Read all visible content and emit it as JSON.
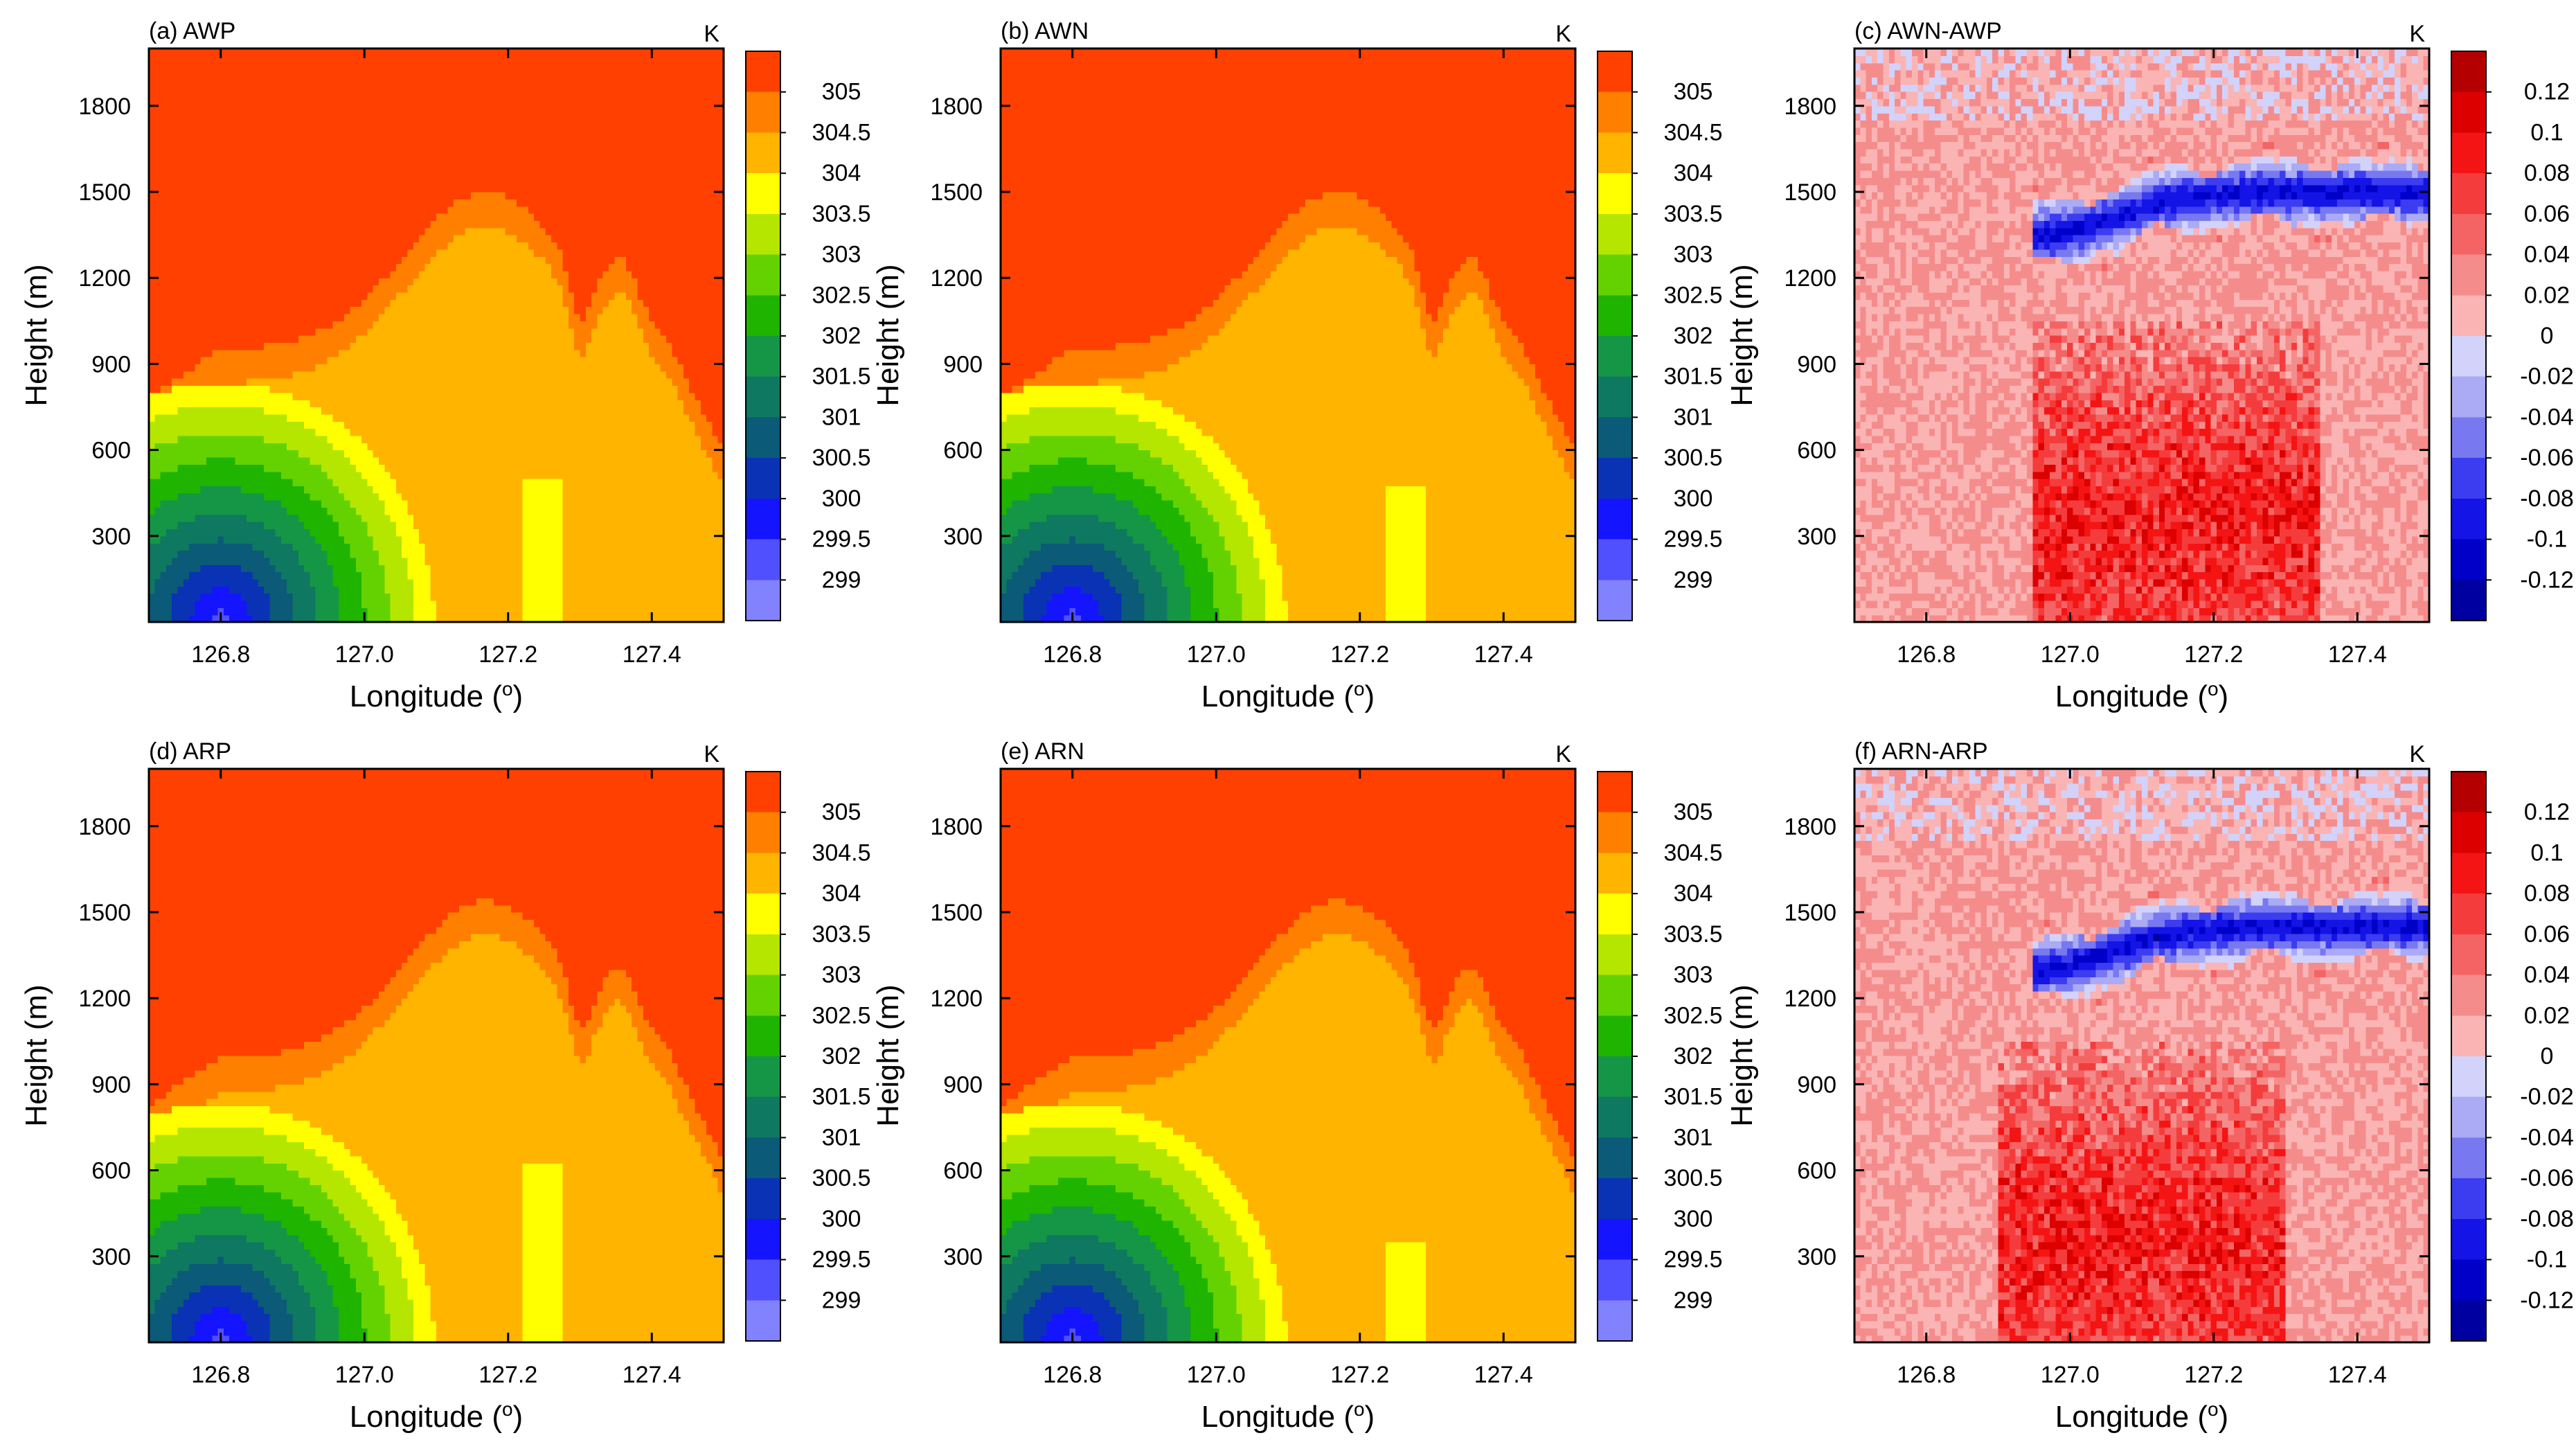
{
  "chart_data": [
    {
      "id": "a",
      "type": "heatmap",
      "title": "(a) AWP",
      "units": "K",
      "xlabel": "Longitude",
      "xlabel_unit": "o",
      "ylabel": "Height (m)",
      "xlim": [
        126.7,
        127.5
      ],
      "ylim": [
        0,
        2000
      ],
      "xticks": [
        "126.8",
        "127.0",
        "127.2",
        "127.4"
      ],
      "xtick_values": [
        126.8,
        127.0,
        127.2,
        127.4
      ],
      "yticks": [
        "300",
        "600",
        "900",
        "1200",
        "1500",
        "1800"
      ],
      "ytick_values": [
        300,
        600,
        900,
        1200,
        1500,
        1800
      ],
      "colorbar": "temp",
      "field": {
        "kind": "temperature",
        "variant": "W",
        "core_peak_km": 0.48,
        "plume": [
          127.25,
          0.5
        ]
      }
    },
    {
      "id": "b",
      "type": "heatmap",
      "title": "(b) AWN",
      "units": "K",
      "xlabel": "Longitude",
      "xlabel_unit": "o",
      "ylabel": "Height (m)",
      "xlim": [
        126.7,
        127.5
      ],
      "ylim": [
        0,
        2000
      ],
      "xticks": [
        "126.8",
        "127.0",
        "127.2",
        "127.4"
      ],
      "xtick_values": [
        126.8,
        127.0,
        127.2,
        127.4
      ],
      "yticks": [
        "300",
        "600",
        "900",
        "1200",
        "1500",
        "1800"
      ],
      "ytick_values": [
        300,
        600,
        900,
        1200,
        1500,
        1800
      ],
      "colorbar": "temp",
      "field": {
        "kind": "temperature",
        "variant": "W",
        "core_peak_km": 0.48,
        "plume": [
          127.26,
          0.48
        ]
      }
    },
    {
      "id": "c",
      "type": "heatmap",
      "title": "(c) AWN-AWP",
      "units": "K",
      "xlabel": "Longitude",
      "xlabel_unit": "o",
      "ylabel": "Height (m)",
      "xlim": [
        126.7,
        127.5
      ],
      "ylim": [
        0,
        2000
      ],
      "xticks": [
        "126.8",
        "127.0",
        "127.2",
        "127.4"
      ],
      "xtick_values": [
        126.8,
        127.0,
        127.2,
        127.4
      ],
      "yticks": [
        "300",
        "600",
        "900",
        "1200",
        "1500",
        "1800"
      ],
      "ytick_values": [
        300,
        600,
        900,
        1200,
        1500,
        1800
      ],
      "colorbar": "diff",
      "field": {
        "kind": "difference",
        "blue_band_km": 1.5,
        "red_core_lon": [
          126.95,
          127.35
        ],
        "seed": 11
      }
    },
    {
      "id": "d",
      "type": "heatmap",
      "title": "(d) ARP",
      "units": "K",
      "xlabel": "Longitude",
      "xlabel_unit": "o",
      "ylabel": "Height (m)",
      "xlim": [
        126.7,
        127.5
      ],
      "ylim": [
        0,
        2000
      ],
      "xticks": [
        "126.8",
        "127.0",
        "127.2",
        "127.4"
      ],
      "xtick_values": [
        126.8,
        127.0,
        127.2,
        127.4
      ],
      "yticks": [
        "300",
        "600",
        "900",
        "1200",
        "1500",
        "1800"
      ],
      "ytick_values": [
        300,
        600,
        900,
        1200,
        1500,
        1800
      ],
      "colorbar": "temp",
      "field": {
        "kind": "temperature",
        "variant": "R",
        "core_peak_km": 0.52,
        "plume": [
          127.25,
          0.62
        ]
      }
    },
    {
      "id": "e",
      "type": "heatmap",
      "title": "(e) ARN",
      "units": "K",
      "xlabel": "Longitude",
      "xlabel_unit": "o",
      "ylabel": "Height (m)",
      "xlim": [
        126.7,
        127.5
      ],
      "ylim": [
        0,
        2000
      ],
      "xticks": [
        "126.8",
        "127.0",
        "127.2",
        "127.4"
      ],
      "xtick_values": [
        126.8,
        127.0,
        127.2,
        127.4
      ],
      "yticks": [
        "300",
        "600",
        "900",
        "1200",
        "1500",
        "1800"
      ],
      "ytick_values": [
        300,
        600,
        900,
        1200,
        1500,
        1800
      ],
      "colorbar": "temp",
      "field": {
        "kind": "temperature",
        "variant": "R",
        "core_peak_km": 0.52,
        "plume": [
          127.26,
          0.36
        ]
      }
    },
    {
      "id": "f",
      "type": "heatmap",
      "title": "(f) ARN-ARP",
      "units": "K",
      "xlabel": "Longitude",
      "xlabel_unit": "o",
      "ylabel": "Height (m)",
      "xlim": [
        126.7,
        127.5
      ],
      "ylim": [
        0,
        2000
      ],
      "xticks": [
        "126.8",
        "127.0",
        "127.2",
        "127.4"
      ],
      "xtick_values": [
        126.8,
        127.0,
        127.2,
        127.4
      ],
      "yticks": [
        "300",
        "600",
        "900",
        "1200",
        "1500",
        "1800"
      ],
      "ytick_values": [
        300,
        600,
        900,
        1200,
        1500,
        1800
      ],
      "colorbar": "diff",
      "field": {
        "kind": "difference",
        "blue_band_km": 1.45,
        "red_core_lon": [
          126.9,
          127.3
        ],
        "seed": 29
      }
    }
  ],
  "colorbars": {
    "temp": {
      "labels": [
        "305",
        "304.5",
        "304",
        "303.5",
        "303",
        "302.5",
        "302",
        "301.5",
        "301",
        "300.5",
        "300",
        "299.5",
        "299"
      ],
      "levels": [
        305,
        304.5,
        304,
        303.5,
        303,
        302.5,
        302,
        301.5,
        301,
        300.5,
        300,
        299.5,
        299
      ],
      "colors": [
        "#ff4000",
        "#ff8000",
        "#ffb400",
        "#ffff00",
        "#b4e600",
        "#64d200",
        "#1eb400",
        "#149646",
        "#0f7860",
        "#0a5a78",
        "#0a32b4",
        "#1414ff",
        "#5050ff",
        "#8282ff"
      ]
    },
    "diff": {
      "labels": [
        "0.12",
        "0.1",
        "0.08",
        "0.06",
        "0.04",
        "0.02",
        "0",
        "-0.02",
        "-0.04",
        "-0.06",
        "-0.08",
        "-0.1",
        "-0.12"
      ],
      "levels": [
        0.12,
        0.1,
        0.08,
        0.06,
        0.04,
        0.02,
        0,
        -0.02,
        -0.04,
        -0.06,
        -0.08,
        -0.1,
        -0.12
      ],
      "colors": [
        "#b40000",
        "#dc0000",
        "#f51414",
        "#f53c3c",
        "#f56464",
        "#f58c8c",
        "#fab4b4",
        "#d2d2fa",
        "#aaaaf5",
        "#7878f0",
        "#3c3cf0",
        "#1414e6",
        "#0000c8",
        "#0000a0"
      ]
    }
  }
}
